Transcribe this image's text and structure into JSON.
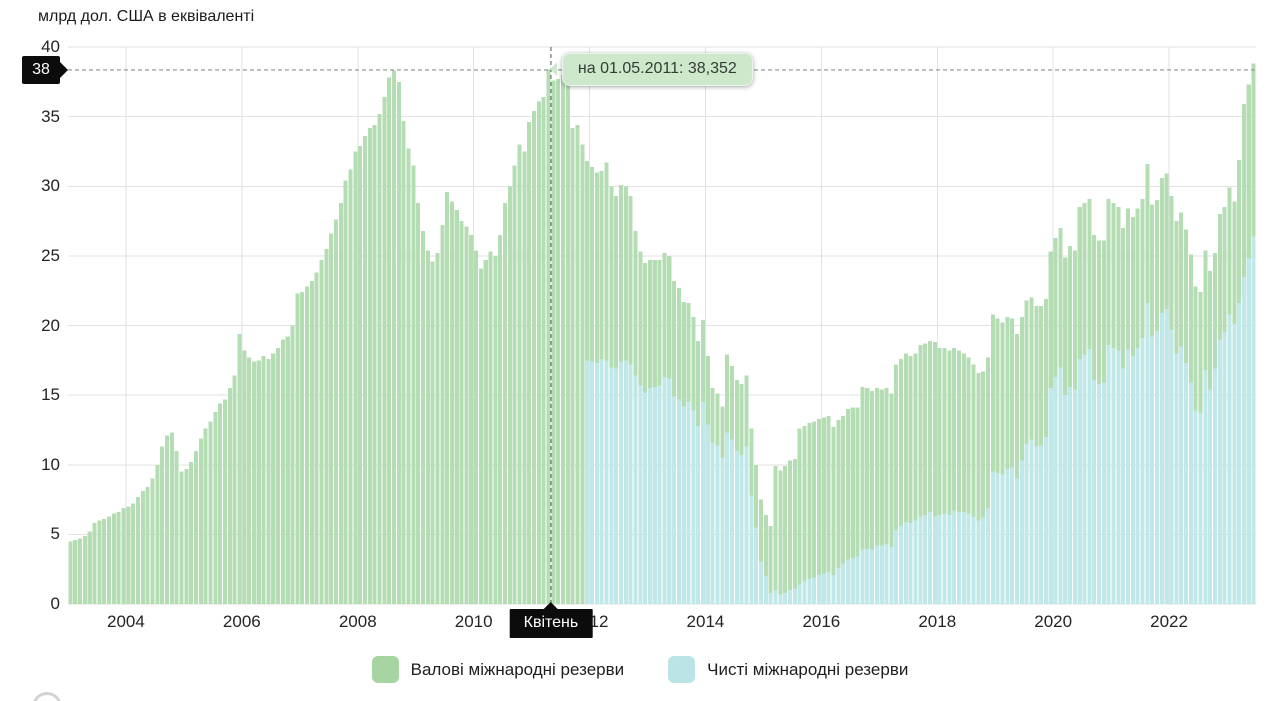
{
  "title": "млрд дол. США в еквіваленті",
  "tooltip": {
    "text": "на 01.05.2011: 38,352"
  },
  "y_badge": {
    "label": "38"
  },
  "x_badge": {
    "label": "Квітень"
  },
  "legend": [
    {
      "label": "Валові міжнародні резерви",
      "color": "#a6d5a2"
    },
    {
      "label": "Чисті міжнародні резерви",
      "color": "#bae4e6"
    }
  ],
  "chart_data": {
    "type": "bar",
    "title": "млрд дол. США в еквіваленті",
    "frequency": "monthly",
    "ylim": [
      0,
      40
    ],
    "grid": true,
    "legend_position": "bottom",
    "y_ticks": [
      0,
      5,
      10,
      15,
      20,
      25,
      30,
      35,
      40
    ],
    "x_ticks": [
      "2004",
      "2006",
      "2008",
      "2010",
      "2012",
      "2014",
      "2016",
      "2018",
      "2020",
      "2022"
    ],
    "marker": {
      "month": "2011-05",
      "display_date": "01.05.2011",
      "value": 38.352,
      "x_label": "Квітень",
      "y_label": "38"
    },
    "series": [
      {
        "name": "Валові міжнародні резерви",
        "color": "#b4ddb4",
        "start": "2003-01",
        "values": [
          4.5,
          4.6,
          4.7,
          4.9,
          5.2,
          5.8,
          6.0,
          6.1,
          6.3,
          6.5,
          6.6,
          6.9,
          7.0,
          7.2,
          7.7,
          8.1,
          8.4,
          9.0,
          10.0,
          11.3,
          12.1,
          12.3,
          11.0,
          9.5,
          9.7,
          10.2,
          11.0,
          11.9,
          12.6,
          13.1,
          13.8,
          14.4,
          14.7,
          15.5,
          16.4,
          19.4,
          18.2,
          17.7,
          17.4,
          17.5,
          17.8,
          17.6,
          18.0,
          18.4,
          19.0,
          19.2,
          20.0,
          22.3,
          22.4,
          22.8,
          23.2,
          23.8,
          24.7,
          25.5,
          26.6,
          27.6,
          28.8,
          30.4,
          31.2,
          32.5,
          32.9,
          33.6,
          34.2,
          34.4,
          35.2,
          36.4,
          37.8,
          38.3,
          37.5,
          34.7,
          32.7,
          31.5,
          28.8,
          26.8,
          25.4,
          24.6,
          25.2,
          27.2,
          29.6,
          28.9,
          28.3,
          27.5,
          27.1,
          26.5,
          25.4,
          24.1,
          24.7,
          25.3,
          25.0,
          26.5,
          28.8,
          30.0,
          31.5,
          33.0,
          32.5,
          34.6,
          35.4,
          36.1,
          36.4,
          38.4,
          37.6,
          37.7,
          38.0,
          38.2,
          34.2,
          34.4,
          33.0,
          31.8,
          31.4,
          31.0,
          31.1,
          31.7,
          30.0,
          29.3,
          30.1,
          30.0,
          29.3,
          26.8,
          25.3,
          24.5,
          24.7,
          24.7,
          24.7,
          25.2,
          25.0,
          23.2,
          22.7,
          21.7,
          21.6,
          20.6,
          18.9,
          20.4,
          17.8,
          15.5,
          15.1,
          14.2,
          17.9,
          17.1,
          16.1,
          15.8,
          16.4,
          12.6,
          10.0,
          7.5,
          6.4,
          5.6,
          9.9,
          9.6,
          9.9,
          10.3,
          10.4,
          12.6,
          12.8,
          13.0,
          13.1,
          13.3,
          13.4,
          13.5,
          12.7,
          13.2,
          13.5,
          14.0,
          14.1,
          14.1,
          15.6,
          15.5,
          15.3,
          15.5,
          15.4,
          15.5,
          15.1,
          17.2,
          17.6,
          18.0,
          17.8,
          18.0,
          18.6,
          18.7,
          18.9,
          18.8,
          18.4,
          18.4,
          18.2,
          18.4,
          18.2,
          18.0,
          17.7,
          17.2,
          16.6,
          16.7,
          17.7,
          20.8,
          20.5,
          20.2,
          20.6,
          20.5,
          19.4,
          20.6,
          21.8,
          22.0,
          21.4,
          21.4,
          21.9,
          25.3,
          26.3,
          27.0,
          24.9,
          25.7,
          25.4,
          28.5,
          28.8,
          29.1,
          26.5,
          26.1,
          26.1,
          29.1,
          28.8,
          28.5,
          27.0,
          28.4,
          27.8,
          28.4,
          29.1,
          31.6,
          28.7,
          29.0,
          30.6,
          30.9,
          29.3,
          27.5,
          28.1,
          26.9,
          25.1,
          22.8,
          22.4,
          25.4,
          23.9,
          25.2,
          28.0,
          28.5,
          29.9,
          28.9,
          31.9,
          35.9,
          37.3,
          38.8
        ]
      },
      {
        "name": "Чисті міжнародні резерви",
        "color": "#c0e8e9",
        "start": "2011-12",
        "values": [
          17.5,
          17.4,
          17.3,
          17.6,
          17.5,
          17.0,
          16.9,
          17.4,
          17.5,
          17.2,
          16.4,
          15.7,
          15.2,
          15.5,
          15.6,
          15.7,
          16.3,
          16.2,
          14.9,
          14.7,
          14.2,
          14.5,
          13.9,
          12.8,
          14.5,
          12.9,
          11.6,
          11.4,
          10.5,
          12.3,
          11.8,
          11.0,
          10.7,
          11.3,
          7.8,
          5.5,
          3.0,
          2.0,
          0.8,
          1.0,
          0.7,
          0.8,
          1.0,
          1.1,
          1.4,
          1.6,
          1.8,
          1.9,
          2.1,
          2.2,
          2.3,
          2.1,
          2.6,
          2.9,
          3.2,
          3.3,
          3.4,
          3.9,
          4.0,
          3.9,
          4.2,
          4.2,
          4.3,
          4.1,
          5.3,
          5.6,
          5.9,
          5.8,
          6.0,
          6.3,
          6.4,
          6.6,
          6.3,
          6.4,
          6.5,
          6.4,
          6.7,
          6.6,
          6.6,
          6.5,
          6.3,
          6.0,
          6.2,
          6.9,
          9.5,
          9.4,
          9.3,
          9.7,
          9.8,
          9.0,
          10.3,
          11.5,
          11.8,
          11.3,
          11.4,
          12.0,
          15.5,
          16.3,
          17.0,
          15.0,
          15.6,
          15.4,
          17.6,
          17.9,
          18.3,
          16.1,
          15.8,
          15.9,
          18.6,
          18.4,
          18.2,
          16.9,
          18.3,
          17.8,
          18.4,
          19.1,
          21.6,
          19.2,
          19.6,
          20.9,
          21.2,
          19.7,
          18.0,
          18.5,
          17.3,
          15.9,
          13.9,
          13.7,
          16.8,
          15.4,
          16.9,
          19.0,
          19.5,
          20.8,
          20.1,
          21.6,
          23.5,
          24.8,
          26.4
        ]
      }
    ]
  }
}
